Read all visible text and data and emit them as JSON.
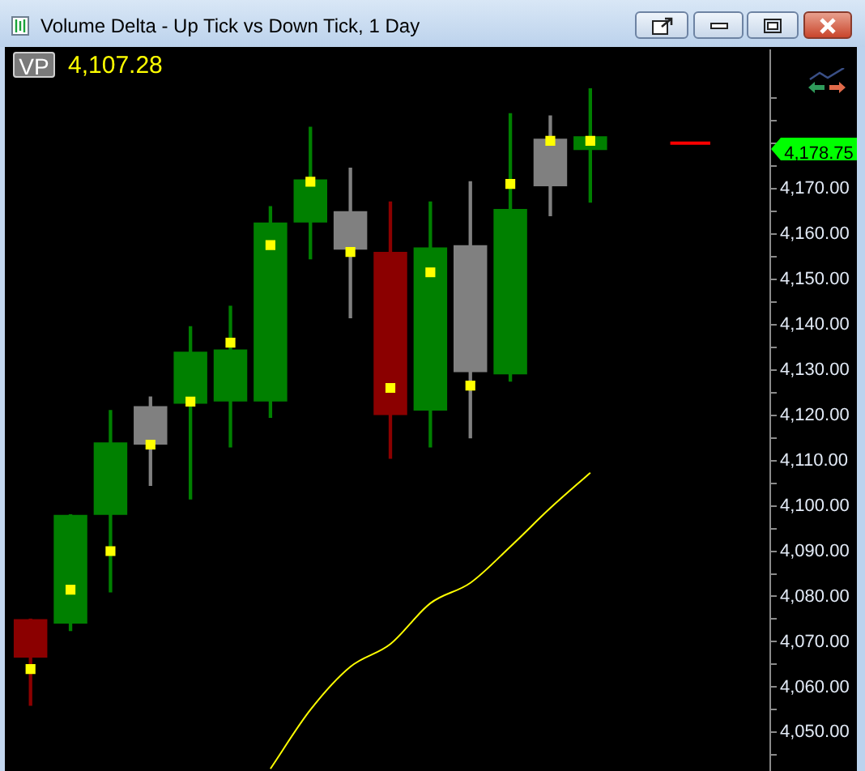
{
  "chart_data": {
    "type": "candlestick",
    "title": "Volume Delta - Up Tick vs Down Tick, 1 Day",
    "categories": [
      null,
      null,
      null,
      null,
      null,
      null,
      null,
      null,
      null,
      null,
      null,
      null,
      null,
      null,
      null,
      null,
      null,
      null,
      null
    ],
    "ohlc": [
      [
        4075,
        4075,
        4056,
        4066.5
      ],
      [
        4074,
        4098,
        4072.5,
        4098
      ],
      [
        4098,
        4121,
        4081,
        4114
      ],
      [
        4122,
        4124,
        4104.5,
        4113.5
      ],
      [
        4122.5,
        4139.5,
        4101.5,
        4134
      ],
      [
        4123,
        4144,
        4113,
        4134.5
      ],
      [
        4123,
        4166,
        4119.5,
        4162.5
      ],
      [
        4162.5,
        4183.5,
        4154.5,
        4172
      ],
      [
        4165,
        4174.5,
        4141.5,
        4156.5
      ],
      [
        4156,
        4167,
        4110.5,
        4120
      ],
      [
        4121,
        4167,
        4113,
        4157
      ],
      [
        4157.5,
        4171.5,
        4115,
        4129.5
      ],
      [
        4129,
        4186.5,
        4127.5,
        4165.5
      ],
      [
        4181,
        4186,
        4164,
        4170.5
      ],
      [
        4178.5,
        4192,
        4167,
        4181.5
      ],
      null,
      null,
      null,
      null
    ],
    "colors": [
      "#8b0000",
      "#008000",
      "#008000",
      "#808080",
      "#008000",
      "#008000",
      "#008000",
      "#008000",
      "#808080",
      "#8b0000",
      "#008000",
      "#808080",
      "#008000",
      "#808080",
      "#008000",
      null,
      null,
      null,
      null
    ],
    "series": [
      {
        "type": "scatter",
        "color": "#ffff00",
        "marker": "square",
        "values": [
          4064,
          4081.5,
          4090,
          4113.5,
          4123,
          4136,
          4157.5,
          4171.5,
          4156,
          4126,
          4151.5,
          4126.5,
          4171,
          4180.5,
          4180.5,
          null,
          null,
          null,
          null
        ]
      },
      {
        "type": "line",
        "color": "#ffff00",
        "marker": "none",
        "values": [
          null,
          null,
          null,
          null,
          null,
          null,
          4042,
          4055,
          4064.5,
          4069.5,
          4078.5,
          4083,
          4091,
          4099.5,
          4107.3,
          null,
          null,
          null,
          null
        ]
      },
      {
        "type": "line",
        "color": "#ff0000",
        "marker": "none",
        "values": [
          null,
          null,
          null,
          null,
          null,
          null,
          null,
          null,
          null,
          null,
          null,
          null,
          null,
          null,
          null,
          null,
          4180,
          4180,
          null
        ]
      }
    ],
    "ylim": [
      4041.5,
      4200.5
    ],
    "yticks": [
      {
        "value": 4045,
        "label": null
      },
      {
        "value": 4050,
        "label": "4,050.00"
      },
      {
        "value": 4055,
        "label": null
      },
      {
        "value": 4060,
        "label": "4,060.00"
      },
      {
        "value": 4065,
        "label": null
      },
      {
        "value": 4070,
        "label": "4,070.00"
      },
      {
        "value": 4075,
        "label": null
      },
      {
        "value": 4080,
        "label": "4,080.00"
      },
      {
        "value": 4085,
        "label": null
      },
      {
        "value": 4090,
        "label": "4,090.00"
      },
      {
        "value": 4095,
        "label": null
      },
      {
        "value": 4100,
        "label": "4,100.00"
      },
      {
        "value": 4105,
        "label": null
      },
      {
        "value": 4110,
        "label": "4,110.00"
      },
      {
        "value": 4115,
        "label": null
      },
      {
        "value": 4120,
        "label": "4,120.00"
      },
      {
        "value": 4125,
        "label": null
      },
      {
        "value": 4130,
        "label": "4,130.00"
      },
      {
        "value": 4135,
        "label": null
      },
      {
        "value": 4140,
        "label": "4,140.00"
      },
      {
        "value": 4145,
        "label": null
      },
      {
        "value": 4150,
        "label": "4,150.00"
      },
      {
        "value": 4155,
        "label": null
      },
      {
        "value": 4160,
        "label": "4,160.00"
      },
      {
        "value": 4165,
        "label": null
      },
      {
        "value": 4170,
        "label": "4,170.00"
      },
      {
        "value": 4175,
        "label": null
      },
      {
        "value": 4180,
        "label": null
      },
      {
        "value": 4185,
        "label": null
      },
      {
        "value": 4190,
        "label": null
      }
    ],
    "tick_labels": "y",
    "annotations": [
      "VP",
      "4,107.28",
      "4,178.75"
    ]
  }
}
